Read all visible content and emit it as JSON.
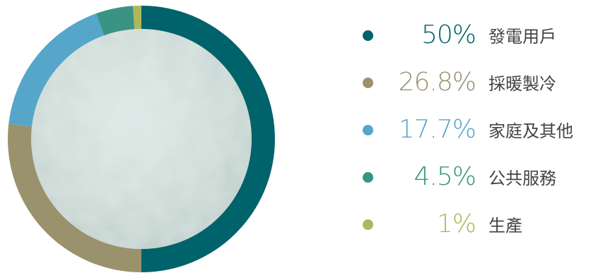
{
  "chart_data": {
    "type": "pie",
    "style": "donut",
    "slices": [
      {
        "label": "發電用戶",
        "value": 50,
        "value_text": "50%",
        "color": "#00626a"
      },
      {
        "label": "採暖製冷",
        "value": 26.8,
        "value_text": "26.8%",
        "color": "#9a926c"
      },
      {
        "label": "家庭及其他",
        "value": 17.7,
        "value_text": "17.7%",
        "color": "#56a6c9"
      },
      {
        "label": "公共服務",
        "value": 4.5,
        "value_text": "4.5%",
        "color": "#3a9483"
      },
      {
        "label": "生產",
        "value": 1,
        "value_text": "1%",
        "color": "#adb85b"
      }
    ],
    "legend_position": "right",
    "center_fill": "watercolor-grey-green"
  }
}
